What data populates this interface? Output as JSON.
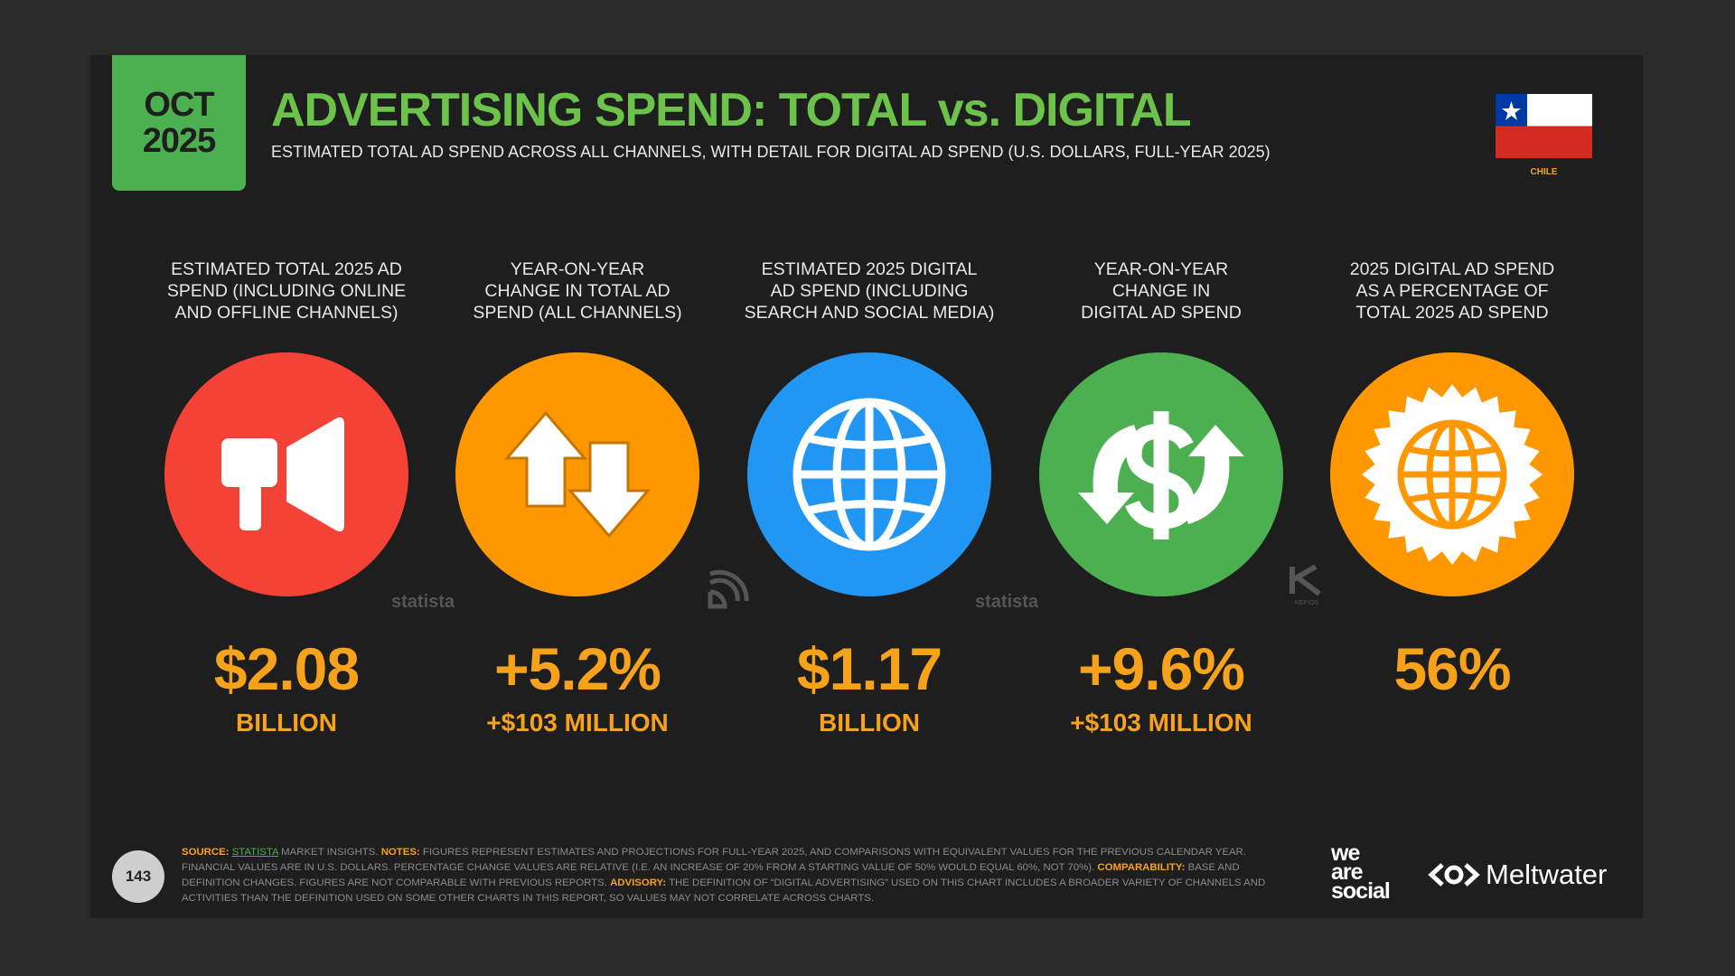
{
  "header": {
    "date_month": "OCT",
    "date_year": "2025",
    "title": "ADVERTISING SPEND: TOTAL vs. DIGITAL",
    "subtitle": "ESTIMATED TOTAL AD SPEND ACROSS ALL CHANNELS, WITH DETAIL FOR DIGITAL AD SPEND (U.S. DOLLARS, FULL-YEAR 2025)",
    "country": "CHILE"
  },
  "stats": [
    {
      "label_lines": [
        "ESTIMATED TOTAL 2025 AD",
        "SPEND (INCLUDING ONLINE",
        "AND OFFLINE CHANNELS)"
      ],
      "value": "$2.08",
      "unit": "BILLION"
    },
    {
      "label_lines": [
        "YEAR-ON-YEAR",
        "CHANGE IN TOTAL AD",
        "SPEND (ALL CHANNELS)"
      ],
      "value": "+5.2%",
      "unit": "+$103 MILLION"
    },
    {
      "label_lines": [
        "ESTIMATED 2025 DIGITAL",
        "AD SPEND (INCLUDING",
        "SEARCH AND SOCIAL MEDIA)"
      ],
      "value": "$1.17",
      "unit": "BILLION"
    },
    {
      "label_lines": [
        "YEAR-ON-YEAR",
        "CHANGE IN",
        "DIGITAL AD SPEND"
      ],
      "value": "+9.6%",
      "unit": "+$103 MILLION"
    },
    {
      "label_lines": [
        "2025 DIGITAL AD SPEND",
        "AS A PERCENTAGE OF",
        "TOTAL 2025 AD SPEND"
      ],
      "value": "56%"
    }
  ],
  "source_logos": [
    "statista",
    "statista",
    "KEPIOS"
  ],
  "footer": {
    "page_number": "143",
    "source_label": "SOURCE:",
    "source_link": "STATISTA",
    "source_text": "MARKET INSIGHTS.",
    "notes_label": "NOTES:",
    "notes_text": "FIGURES REPRESENT ESTIMATES AND PROJECTIONS FOR FULL-YEAR 2025, AND COMPARISONS WITH EQUIVALENT VALUES FOR THE PREVIOUS CALENDAR YEAR. FINANCIAL VALUES ARE IN U.S. DOLLARS. PERCENTAGE CHANGE VALUES ARE RELATIVE (I.E. AN INCREASE OF 20% FROM A STARTING VALUE OF 50% WOULD EQUAL 60%, NOT 70%).",
    "comparability_label": "COMPARABILITY:",
    "comparability_text": "BASE AND DEFINITION CHANGES. FIGURES ARE NOT COMPARABLE WITH PREVIOUS REPORTS.",
    "advisory_label": "ADVISORY:",
    "advisory_text": "THE DEFINITION OF “DIGITAL ADVERTISING” USED ON THIS CHART INCLUDES A BROADER VARIETY OF CHANNELS AND ACTIVITIES THAN THE DEFINITION USED ON SOME OTHER CHARTS IN THIS REPORT, SO VALUES MAY NOT CORRELATE ACROSS CHARTS."
  },
  "brands": {
    "we": "we",
    "are": "are",
    "social": "social",
    "meltwater": "Meltwater"
  }
}
